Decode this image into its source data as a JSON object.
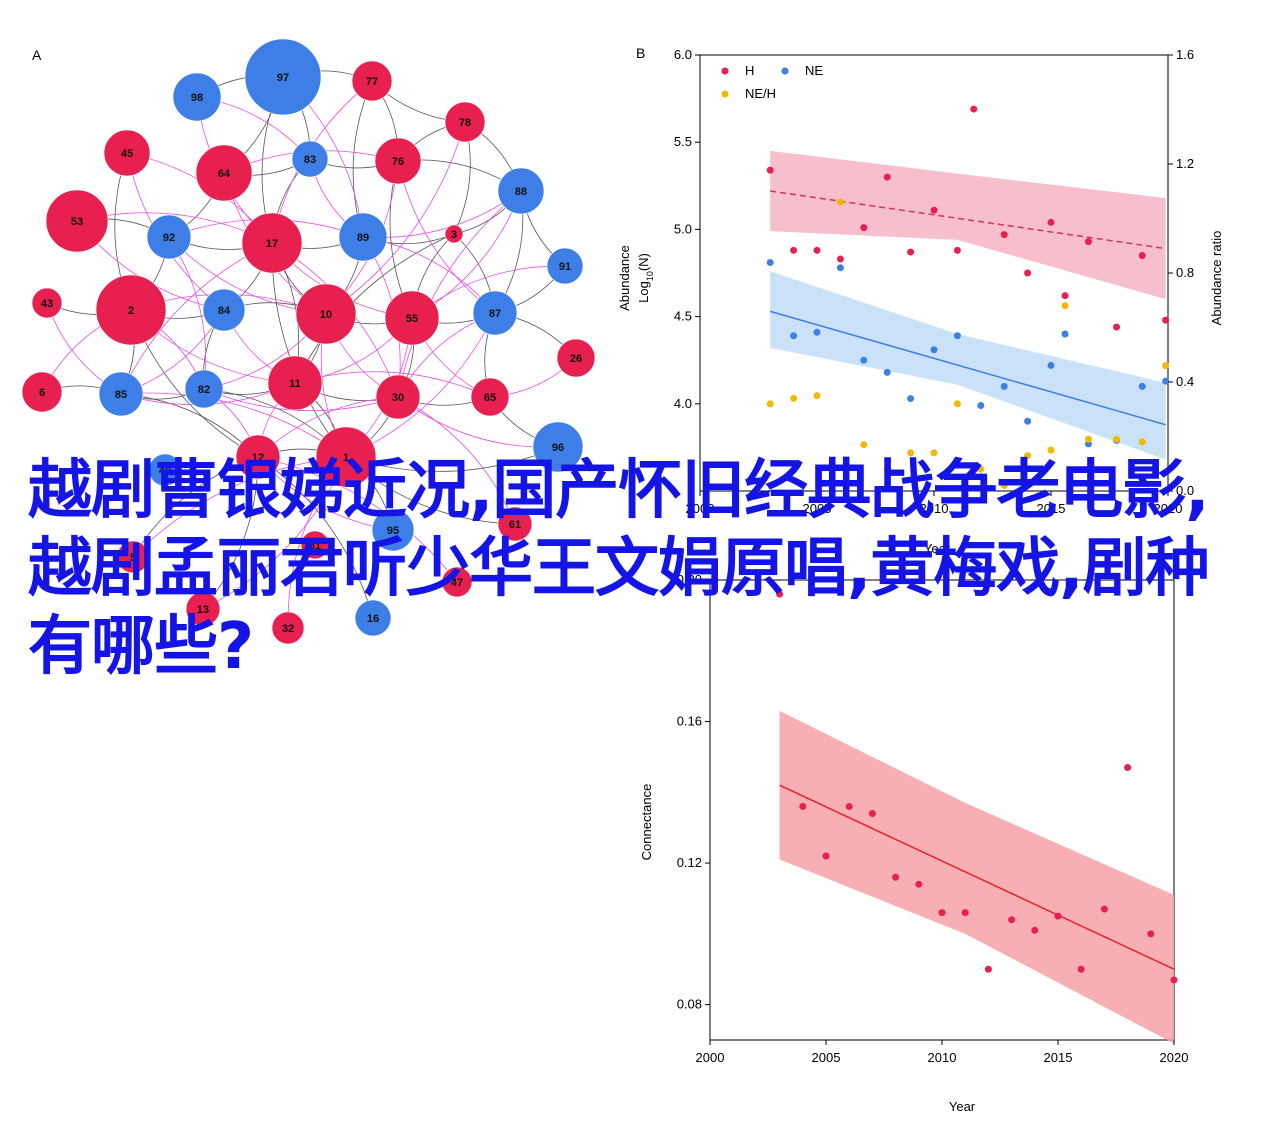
{
  "overlay": {
    "title": "越剧曹银娣近况,国产怀旧经典战争老电影,越剧孟丽君听少华王文娟原唱,黄梅戏,剧种有哪些?"
  },
  "colors": {
    "red": "#e8204f",
    "blue": "#3d7fe6",
    "yellow": "#f5b800",
    "edge_grey": "#555555",
    "edge_pink": "#e84fe0",
    "band_red": "#f08aa4",
    "band_blue": "#9fcaf2",
    "band_conn": "#f7a1a6",
    "fit_conn": "#e8202a"
  },
  "chart_data": [
    {
      "panel": "A",
      "type": "network",
      "nodes": [
        {
          "id": "97",
          "color": "blue",
          "size": 38
        },
        {
          "id": "77",
          "color": "red",
          "size": 20
        },
        {
          "id": "98",
          "color": "blue",
          "size": 24
        },
        {
          "id": "78",
          "color": "red",
          "size": 20
        },
        {
          "id": "45",
          "color": "red",
          "size": 23
        },
        {
          "id": "64",
          "color": "red",
          "size": 28
        },
        {
          "id": "83",
          "color": "blue",
          "size": 18
        },
        {
          "id": "76",
          "color": "red",
          "size": 23
        },
        {
          "id": "88",
          "color": "blue",
          "size": 23
        },
        {
          "id": "53",
          "color": "red",
          "size": 31
        },
        {
          "id": "92",
          "color": "blue",
          "size": 22
        },
        {
          "id": "17",
          "color": "red",
          "size": 30
        },
        {
          "id": "89",
          "color": "blue",
          "size": 24
        },
        {
          "id": "3",
          "color": "red",
          "size": 9
        },
        {
          "id": "91",
          "color": "blue",
          "size": 18
        },
        {
          "id": "43",
          "color": "red",
          "size": 15
        },
        {
          "id": "2",
          "color": "red",
          "size": 35
        },
        {
          "id": "84",
          "color": "blue",
          "size": 21
        },
        {
          "id": "10",
          "color": "red",
          "size": 30
        },
        {
          "id": "55",
          "color": "red",
          "size": 27
        },
        {
          "id": "87",
          "color": "blue",
          "size": 22
        },
        {
          "id": "26",
          "color": "red",
          "size": 19
        },
        {
          "id": "6",
          "color": "red",
          "size": 20
        },
        {
          "id": "85",
          "color": "blue",
          "size": 22
        },
        {
          "id": "82",
          "color": "blue",
          "size": 19
        },
        {
          "id": "11",
          "color": "red",
          "size": 27
        },
        {
          "id": "30",
          "color": "red",
          "size": 22
        },
        {
          "id": "65",
          "color": "red",
          "size": 19
        },
        {
          "id": "96",
          "color": "blue",
          "size": 25
        },
        {
          "id": "12",
          "color": "red",
          "size": 22
        },
        {
          "id": "1",
          "color": "red",
          "size": 30
        },
        {
          "id": "61",
          "color": "red",
          "size": 17
        },
        {
          "id": "95",
          "color": "blue",
          "size": 21
        },
        {
          "id": "5",
          "color": "red",
          "size": 16
        },
        {
          "id": "13",
          "color": "red",
          "size": 17
        },
        {
          "id": "32",
          "color": "red",
          "size": 16
        },
        {
          "id": "16",
          "color": "blue",
          "size": 18
        },
        {
          "id": "47",
          "color": "red",
          "size": 15
        },
        {
          "id": "51",
          "color": "red",
          "size": 14
        },
        {
          "id": "40",
          "color": "blue",
          "size": 16
        }
      ],
      "edges_grey": [
        [
          "97",
          "77"
        ],
        [
          "97",
          "98"
        ],
        [
          "97",
          "83"
        ],
        [
          "97",
          "17"
        ],
        [
          "97",
          "64"
        ],
        [
          "77",
          "78"
        ],
        [
          "77",
          "76"
        ],
        [
          "77",
          "89"
        ],
        [
          "78",
          "88"
        ],
        [
          "78",
          "76"
        ],
        [
          "78",
          "3"
        ],
        [
          "83",
          "76"
        ],
        [
          "83",
          "64"
        ],
        [
          "83",
          "17"
        ],
        [
          "76",
          "88"
        ],
        [
          "76",
          "55"
        ],
        [
          "88",
          "87"
        ],
        [
          "88",
          "91"
        ],
        [
          "88",
          "3"
        ],
        [
          "92",
          "17"
        ],
        [
          "92",
          "2"
        ],
        [
          "92",
          "64"
        ],
        [
          "17",
          "84"
        ],
        [
          "17",
          "10"
        ],
        [
          "17",
          "11"
        ],
        [
          "17",
          "1"
        ],
        [
          "89",
          "10"
        ],
        [
          "89",
          "3"
        ],
        [
          "89",
          "17"
        ],
        [
          "3",
          "55"
        ],
        [
          "3",
          "87"
        ],
        [
          "3",
          "11"
        ],
        [
          "91",
          "87"
        ],
        [
          "2",
          "84"
        ],
        [
          "2",
          "85"
        ],
        [
          "2",
          "12"
        ],
        [
          "2",
          "45"
        ],
        [
          "84",
          "82"
        ],
        [
          "84",
          "10"
        ],
        [
          "10",
          "55"
        ],
        [
          "10",
          "11"
        ],
        [
          "55",
          "87"
        ],
        [
          "55",
          "30"
        ],
        [
          "87",
          "65"
        ],
        [
          "87",
          "26"
        ],
        [
          "85",
          "82"
        ],
        [
          "85",
          "12"
        ],
        [
          "82",
          "11"
        ],
        [
          "82",
          "1"
        ],
        [
          "11",
          "30"
        ],
        [
          "11",
          "1"
        ],
        [
          "30",
          "65"
        ],
        [
          "30",
          "1"
        ],
        [
          "65",
          "96"
        ],
        [
          "12",
          "1"
        ],
        [
          "1",
          "96"
        ],
        [
          "12",
          "13"
        ],
        [
          "1",
          "61"
        ],
        [
          "6",
          "85"
        ],
        [
          "43",
          "2"
        ],
        [
          "53",
          "92"
        ],
        [
          "95",
          "1"
        ],
        [
          "5",
          "12"
        ],
        [
          "16",
          "12"
        ]
      ],
      "edges_pink": [
        [
          "98",
          "83"
        ],
        [
          "98",
          "17"
        ],
        [
          "45",
          "17"
        ],
        [
          "45",
          "84"
        ],
        [
          "64",
          "76"
        ],
        [
          "64",
          "10"
        ],
        [
          "53",
          "17"
        ],
        [
          "53",
          "84"
        ],
        [
          "92",
          "89"
        ],
        [
          "92",
          "10"
        ],
        [
          "92",
          "82"
        ],
        [
          "17",
          "55"
        ],
        [
          "17",
          "30"
        ],
        [
          "17",
          "85"
        ],
        [
          "89",
          "87"
        ],
        [
          "89",
          "88"
        ],
        [
          "89",
          "30"
        ],
        [
          "83",
          "89"
        ],
        [
          "76",
          "10"
        ],
        [
          "76",
          "87"
        ],
        [
          "88",
          "55"
        ],
        [
          "88",
          "30"
        ],
        [
          "2",
          "10"
        ],
        [
          "2",
          "11"
        ],
        [
          "2",
          "82"
        ],
        [
          "84",
          "11"
        ],
        [
          "84",
          "85"
        ],
        [
          "10",
          "30"
        ],
        [
          "10",
          "82"
        ],
        [
          "10",
          "1"
        ],
        [
          "55",
          "11"
        ],
        [
          "55",
          "65"
        ],
        [
          "55",
          "1"
        ],
        [
          "87",
          "30"
        ],
        [
          "87",
          "1"
        ],
        [
          "85",
          "11"
        ],
        [
          "85",
          "1"
        ],
        [
          "82",
          "30"
        ],
        [
          "82",
          "12"
        ],
        [
          "11",
          "12"
        ],
        [
          "11",
          "65"
        ],
        [
          "30",
          "96"
        ],
        [
          "12",
          "30"
        ],
        [
          "12",
          "95"
        ],
        [
          "1",
          "13"
        ],
        [
          "1",
          "5"
        ],
        [
          "6",
          "2"
        ],
        [
          "43",
          "85"
        ],
        [
          "97",
          "89"
        ],
        [
          "77",
          "17"
        ],
        [
          "78",
          "10"
        ],
        [
          "91",
          "55"
        ],
        [
          "26",
          "65"
        ],
        [
          "61",
          "30"
        ],
        [
          "32",
          "1"
        ],
        [
          "47",
          "12"
        ]
      ]
    },
    {
      "panel": "B",
      "type": "scatter",
      "xlabel": "Year",
      "ylabel": "Abundance Log10(N)",
      "ylabel_main": "Abundance",
      "ylabel_sub_prefix": "Log",
      "ylabel_sub_index": "10",
      "ylabel_sub_suffix": "(N)",
      "y2label": "Abundance ratio",
      "xlim": [
        2000,
        2020
      ],
      "ylim": [
        3.5,
        6.0
      ],
      "y2lim": [
        0.0,
        1.6
      ],
      "xticks": [
        "2000",
        "2005",
        "2010",
        "2015",
        "2020"
      ],
      "yticks": [
        "4.0",
        "4.5",
        "5.0",
        "5.5",
        "6.0"
      ],
      "y2ticks": [
        "0.0",
        "0.4",
        "0.8",
        "1.2",
        "1.6"
      ],
      "legend": {
        "position": "top-left",
        "entries": [
          "H",
          "NE",
          "NE/H"
        ]
      },
      "series": [
        {
          "name": "H",
          "color": "red",
          "axis": "left",
          "points": [
            [
              2003,
              5.34
            ],
            [
              2004,
              4.88
            ],
            [
              2005,
              4.88
            ],
            [
              2006,
              4.83
            ],
            [
              2007,
              5.01
            ],
            [
              2008,
              5.3
            ],
            [
              2009,
              4.87
            ],
            [
              2010,
              5.11
            ],
            [
              2011,
              4.88
            ],
            [
              2011.7,
              5.69
            ],
            [
              2013,
              4.97
            ],
            [
              2014,
              4.75
            ],
            [
              2015,
              5.04
            ],
            [
              2015.6,
              4.62
            ],
            [
              2016.6,
              4.93
            ],
            [
              2017.8,
              4.44
            ],
            [
              2018.9,
              4.85
            ],
            [
              2019.9,
              4.48
            ]
          ],
          "fit": [
            [
              2003,
              5.22
            ],
            [
              2019.9,
              4.89
            ]
          ],
          "band_upper": [
            [
              2003,
              5.45
            ],
            [
              2011,
              5.32
            ],
            [
              2019.9,
              5.18
            ]
          ],
          "band_lower": [
            [
              2003,
              4.99
            ],
            [
              2011,
              4.94
            ],
            [
              2019.9,
              4.6
            ]
          ]
        },
        {
          "name": "NE",
          "color": "blue",
          "axis": "left",
          "points": [
            [
              2003,
              4.81
            ],
            [
              2004,
              4.39
            ],
            [
              2005,
              4.41
            ],
            [
              2006,
              4.78
            ],
            [
              2007,
              4.25
            ],
            [
              2008,
              4.18
            ],
            [
              2009,
              4.03
            ],
            [
              2010,
              4.31
            ],
            [
              2011,
              4.39
            ],
            [
              2012,
              3.99
            ],
            [
              2013,
              4.1
            ],
            [
              2014,
              3.9
            ],
            [
              2015,
              4.22
            ],
            [
              2015.6,
              4.4
            ],
            [
              2016.6,
              3.77
            ],
            [
              2017.8,
              3.79
            ],
            [
              2018.9,
              4.1
            ],
            [
              2019.9,
              4.13
            ]
          ],
          "fit": [
            [
              2003,
              4.53
            ],
            [
              2019.9,
              3.88
            ]
          ],
          "band_upper": [
            [
              2003,
              4.76
            ],
            [
              2011,
              4.4
            ],
            [
              2019.9,
              4.12
            ]
          ],
          "band_lower": [
            [
              2003,
              4.32
            ],
            [
              2011,
              4.11
            ],
            [
              2019.9,
              3.68
            ]
          ]
        },
        {
          "name": "NE/H",
          "color": "yellow",
          "axis": "right",
          "points": [
            [
              2003,
              0.32
            ],
            [
              2004,
              0.34
            ],
            [
              2005,
              0.35
            ],
            [
              2006,
              1.06
            ],
            [
              2007,
              0.17
            ],
            [
              2008,
              0.08
            ],
            [
              2009,
              0.14
            ],
            [
              2010,
              0.14
            ],
            [
              2011,
              0.32
            ],
            [
              2012,
              0.08
            ],
            [
              2013,
              0.02
            ],
            [
              2014,
              0.13
            ],
            [
              2015,
              0.15
            ],
            [
              2015.6,
              0.68
            ],
            [
              2016.6,
              0.19
            ],
            [
              2017.8,
              0.19
            ],
            [
              2018.9,
              0.18
            ],
            [
              2019.9,
              0.46
            ]
          ]
        }
      ]
    },
    {
      "panel": "C",
      "type": "scatter",
      "xlabel": "Year",
      "ylabel": "Connectance",
      "xlim": [
        2000,
        2020
      ],
      "ylim": [
        0.07,
        0.2
      ],
      "xticks": [
        "2000",
        "2005",
        "2010",
        "2015",
        "2020"
      ],
      "yticks": [
        "0.08",
        "0.12",
        "0.16",
        "0.20"
      ],
      "series": [
        {
          "name": "",
          "color": "red",
          "points": [
            [
              2003,
              0.196
            ],
            [
              2004,
              0.136
            ],
            [
              2005,
              0.122
            ],
            [
              2006,
              0.136
            ],
            [
              2007,
              0.134
            ],
            [
              2008,
              0.116
            ],
            [
              2009,
              0.114
            ],
            [
              2010,
              0.106
            ],
            [
              2011,
              0.106
            ],
            [
              2012,
              0.09
            ],
            [
              2013,
              0.104
            ],
            [
              2014,
              0.101
            ],
            [
              2015,
              0.105
            ],
            [
              2016,
              0.09
            ],
            [
              2017,
              0.107
            ],
            [
              2018,
              0.147
            ],
            [
              2019,
              0.1
            ],
            [
              2020,
              0.087
            ]
          ],
          "fit": [
            [
              2003,
              0.142
            ],
            [
              2020,
              0.09
            ]
          ],
          "band_upper": [
            [
              2003,
              0.163
            ],
            [
              2011,
              0.137
            ],
            [
              2020,
              0.111
            ]
          ],
          "band_lower": [
            [
              2003,
              0.121
            ],
            [
              2011,
              0.1
            ],
            [
              2020,
              0.069
            ]
          ]
        }
      ]
    }
  ]
}
